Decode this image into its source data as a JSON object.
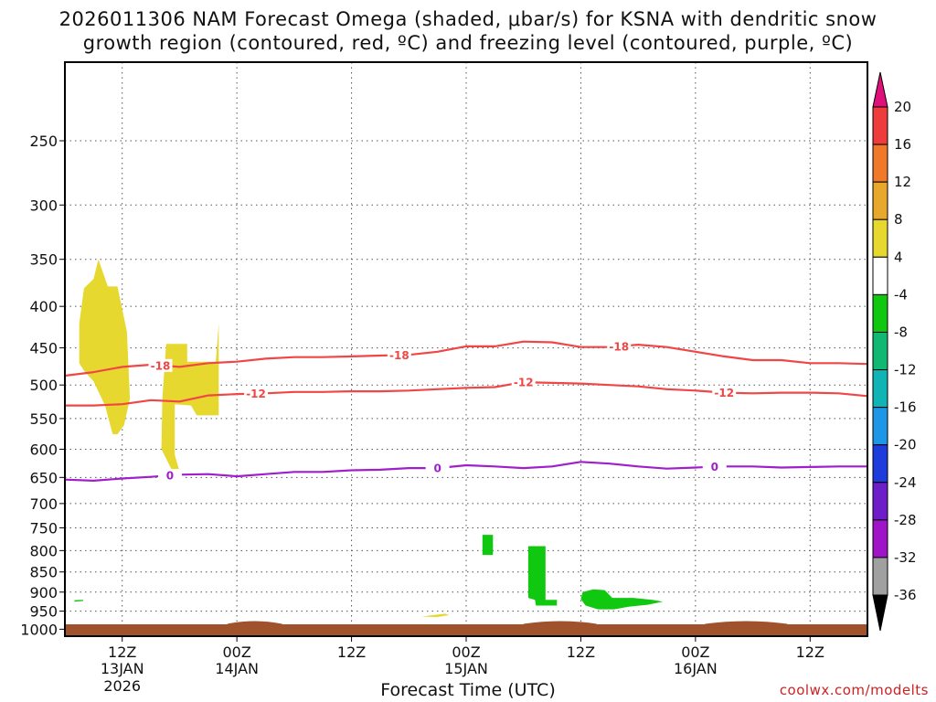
{
  "chart_data": {
    "type": "time-height",
    "title_line1": "2026011306 NAM Forecast Omega (shaded, μbar/s) for KSNA with dendritic snow",
    "title_line2": "growth region (contoured, red, ºC) and freezing level (contoured, purple, ºC)",
    "xlabel": "Forecast Time (UTC)",
    "credit": "coolwx.com/modelts",
    "x_range_hours": [
      0,
      84
    ],
    "y_range_hPa": [
      1020,
      200
    ],
    "y_ticks": [
      250,
      300,
      350,
      400,
      450,
      500,
      550,
      600,
      650,
      700,
      750,
      800,
      850,
      900,
      950,
      1000
    ],
    "x_ticks": [
      {
        "hour": 6,
        "label": "12Z",
        "date": "13JAN",
        "year": "2026"
      },
      {
        "hour": 18,
        "label": "00Z",
        "date": "14JAN",
        "year": ""
      },
      {
        "hour": 30,
        "label": "12Z",
        "date": "",
        "year": ""
      },
      {
        "hour": 42,
        "label": "00Z",
        "date": "15JAN",
        "year": ""
      },
      {
        "hour": 54,
        "label": "12Z",
        "date": "",
        "year": ""
      },
      {
        "hour": 66,
        "label": "00Z",
        "date": "16JAN",
        "year": ""
      },
      {
        "hour": 78,
        "label": "12Z",
        "date": "",
        "year": ""
      }
    ],
    "colorbar": {
      "labels": [
        "20",
        "16",
        "12",
        "8",
        "4",
        "-4",
        "-8",
        "-12",
        "-16",
        "-20",
        "-24",
        "-28",
        "-32",
        "-36"
      ],
      "levels": [
        {
          "from": 16,
          "to": 20,
          "color": "#ee3b3b"
        },
        {
          "from": 12,
          "to": 16,
          "color": "#f0782a"
        },
        {
          "from": 8,
          "to": 12,
          "color": "#e8a82c"
        },
        {
          "from": 4,
          "to": 8,
          "color": "#e6d82e"
        },
        {
          "from": -4,
          "to": 4,
          "color": "#ffffff"
        },
        {
          "from": -8,
          "to": -4,
          "color": "#11c811"
        },
        {
          "from": -12,
          "to": -8,
          "color": "#11b871"
        },
        {
          "from": -16,
          "to": -12,
          "color": "#10b4b4"
        },
        {
          "from": -20,
          "to": -16,
          "color": "#1e96e6"
        },
        {
          "from": -24,
          "to": -20,
          "color": "#1e3cdc"
        },
        {
          "from": -28,
          "to": -24,
          "color": "#6e1ec8"
        },
        {
          "from": -32,
          "to": -28,
          "color": "#a014c8"
        },
        {
          "from": -36,
          "to": -32,
          "color": "#a0a0a0"
        }
      ],
      "top_arrow_color": "#e0107a",
      "bottom_arrow_color": "#000000"
    },
    "ground_color": "#a0522d",
    "contours": [
      {
        "name": "-18C",
        "label": "-18",
        "color": "#f04646",
        "hours": [
          0,
          3,
          6,
          9,
          12,
          15,
          18,
          21,
          24,
          27,
          30,
          33,
          36,
          39,
          42,
          45,
          48,
          51,
          54,
          57,
          60,
          63,
          66,
          69,
          72,
          75,
          78,
          81,
          84
        ],
        "pressure": [
          487,
          482,
          475,
          472,
          475,
          470,
          468,
          464,
          462,
          462,
          461,
          460,
          459,
          455,
          448,
          448,
          442,
          443,
          449,
          449,
          446,
          449,
          455,
          461,
          466,
          466,
          470,
          470,
          471
        ],
        "label_hours": [
          10,
          35,
          58
        ]
      },
      {
        "name": "-12C",
        "label": "-12",
        "color": "#f04646",
        "hours": [
          0,
          3,
          6,
          9,
          12,
          15,
          18,
          21,
          24,
          27,
          30,
          33,
          36,
          39,
          42,
          45,
          48,
          51,
          54,
          57,
          60,
          63,
          66,
          69,
          72,
          75,
          78,
          81,
          84
        ],
        "pressure": [
          530,
          530,
          528,
          522,
          524,
          515,
          513,
          512,
          510,
          510,
          509,
          509,
          508,
          506,
          504,
          503,
          496,
          497,
          498,
          500,
          502,
          506,
          508,
          511,
          512,
          511,
          511,
          512,
          516
        ],
        "label_hours": [
          20,
          48,
          69
        ]
      },
      {
        "name": "0C",
        "label": "0",
        "color": "#a01ecc",
        "hours": [
          0,
          3,
          6,
          9,
          12,
          15,
          18,
          21,
          24,
          27,
          30,
          33,
          36,
          39,
          42,
          45,
          48,
          51,
          54,
          57,
          60,
          63,
          66,
          69,
          72,
          75,
          78,
          81,
          84
        ],
        "pressure": [
          654,
          656,
          652,
          649,
          645,
          644,
          648,
          644,
          640,
          640,
          637,
          636,
          633,
          633,
          628,
          630,
          633,
          630,
          622,
          625,
          630,
          634,
          632,
          630,
          630,
          632,
          631,
          630,
          630
        ],
        "label_hours": [
          11,
          39,
          68
        ]
      }
    ],
    "shaded_regions": [
      {
        "name": "upward-blob-1",
        "value_band": "4 to 8",
        "color": "#e6d82e",
        "points": [
          [
            1.5,
            470
          ],
          [
            1.5,
            420
          ],
          [
            2,
            380
          ],
          [
            3,
            370
          ],
          [
            3.5,
            350
          ],
          [
            4.5,
            378
          ],
          [
            5.5,
            378
          ],
          [
            6.5,
            430
          ],
          [
            6.8,
            520
          ],
          [
            6.2,
            560
          ],
          [
            5.5,
            575
          ],
          [
            5,
            575
          ],
          [
            4.2,
            530
          ],
          [
            3,
            495
          ],
          [
            2,
            480
          ]
        ]
      },
      {
        "name": "upward-blob-2",
        "value_band": "4 to 8",
        "color": "#e6d82e",
        "points": [
          [
            10.2,
            520
          ],
          [
            10.6,
            445
          ],
          [
            12.8,
            445
          ],
          [
            12.8,
            468
          ],
          [
            15.8,
            468
          ],
          [
            16.1,
            420
          ],
          [
            16.1,
            490
          ],
          [
            16.1,
            545
          ],
          [
            13.8,
            545
          ],
          [
            13.2,
            530
          ],
          [
            11.5,
            528
          ],
          [
            11.5,
            610
          ],
          [
            12.1,
            645
          ],
          [
            11.3,
            640
          ],
          [
            10.1,
            600
          ]
        ]
      },
      {
        "name": "upward-blob-3",
        "value_band": "4 to 8",
        "color": "#e6d82e",
        "points": [
          [
            37.3,
            965
          ],
          [
            38.5,
            961
          ],
          [
            39.8,
            957
          ],
          [
            40.2,
            961
          ],
          [
            39,
            966
          ]
        ]
      },
      {
        "name": "downward-blob-1",
        "value_band": "-4 to -8",
        "color": "#11c811",
        "points": [
          [
            43.7,
            765
          ],
          [
            44.8,
            765
          ],
          [
            44.8,
            810
          ],
          [
            43.7,
            810
          ]
        ]
      },
      {
        "name": "downward-blob-2",
        "value_band": "-4 to -8",
        "color": "#11c811",
        "points": [
          [
            48.5,
            790
          ],
          [
            50.3,
            790
          ],
          [
            50.3,
            920
          ],
          [
            51.5,
            920
          ],
          [
            51.5,
            935
          ],
          [
            49.3,
            935
          ],
          [
            49.2,
            920
          ],
          [
            48.5,
            915
          ]
        ]
      },
      {
        "name": "downward-blob-3",
        "value_band": "-4 to -8",
        "color": "#11c811",
        "points": [
          [
            54.2,
            900
          ],
          [
            55.3,
            893
          ],
          [
            56.5,
            895
          ],
          [
            57.3,
            915
          ],
          [
            59.5,
            915
          ],
          [
            61.5,
            920
          ],
          [
            62.6,
            925
          ],
          [
            61,
            933
          ],
          [
            59,
            938
          ],
          [
            57.5,
            945
          ],
          [
            55.8,
            945
          ],
          [
            54.5,
            935
          ],
          [
            54,
            918
          ]
        ]
      },
      {
        "name": "downward-sliver",
        "value_band": "-4 to -8",
        "color": "#11c811",
        "points": [
          [
            1.0,
            921
          ],
          [
            1.9,
            920
          ],
          [
            1.9,
            923
          ],
          [
            1.0,
            925
          ]
        ]
      }
    ]
  }
}
